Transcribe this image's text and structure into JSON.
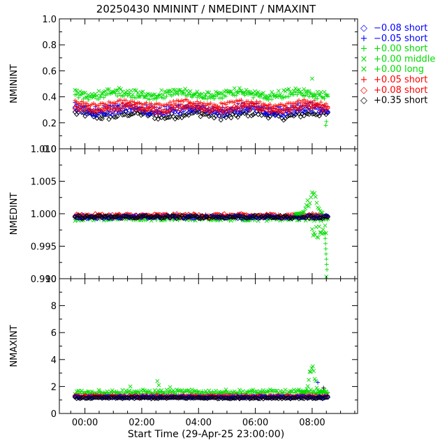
{
  "title": "20250430 NMININT / NMEDINT / NMAXINT",
  "xlabel": "Start Time (29-Apr-25 23:00:00)",
  "x_ticks": [
    "00:00",
    "02:00",
    "04:00",
    "06:00",
    "08:00"
  ],
  "legend": [
    {
      "symbol": "◇",
      "label": "−0.08 short",
      "color": "#0000ff"
    },
    {
      "symbol": "+",
      "label": "−0.05 short",
      "color": "#0000ff"
    },
    {
      "symbol": "+",
      "label": "+0.00 short",
      "color": "#00dd00"
    },
    {
      "symbol": "×",
      "label": "+0.00 middle",
      "color": "#00dd00"
    },
    {
      "symbol": "×",
      "label": "+0.00 long",
      "color": "#00dd00"
    },
    {
      "symbol": "+",
      "label": "+0.05 short",
      "color": "#ff0000"
    },
    {
      "symbol": "◇",
      "label": "+0.08 short",
      "color": "#ff0000"
    },
    {
      "symbol": "◇",
      "label": "+0.35 short",
      "color": "#000000"
    }
  ],
  "chart_data": [
    {
      "type": "scatter",
      "ylabel": "NMININT",
      "ylim": [
        0.0,
        1.0
      ],
      "yticks": [
        "0.0",
        "0.2",
        "0.4",
        "0.6",
        "0.8",
        "1.0"
      ],
      "xlim_hours": [
        -0.9,
        9.6
      ],
      "series_levels": {
        "green_x": 0.43,
        "green_plus": 0.41,
        "red_plus": 0.35,
        "red_diamond": 0.31,
        "blue_plus": 0.32,
        "blue_diamond": 0.29,
        "black_diamond": 0.26
      }
    },
    {
      "type": "scatter",
      "ylabel": "NMEDINT",
      "ylim": [
        0.99,
        1.01
      ],
      "yticks": [
        "0.990",
        "0.995",
        "1.000",
        "1.005",
        "1.010"
      ],
      "xlim_hours": [
        -0.9,
        9.6
      ],
      "series_levels": {
        "all": 0.9995
      }
    },
    {
      "type": "scatter",
      "ylabel": "NMAXINT",
      "ylim": [
        0,
        10
      ],
      "yticks": [
        "0",
        "2",
        "4",
        "6",
        "8",
        "10"
      ],
      "xlim_hours": [
        -0.9,
        9.6
      ],
      "series_levels": {
        "green": 1.6,
        "red": 1.25,
        "black": 1.15
      }
    }
  ]
}
